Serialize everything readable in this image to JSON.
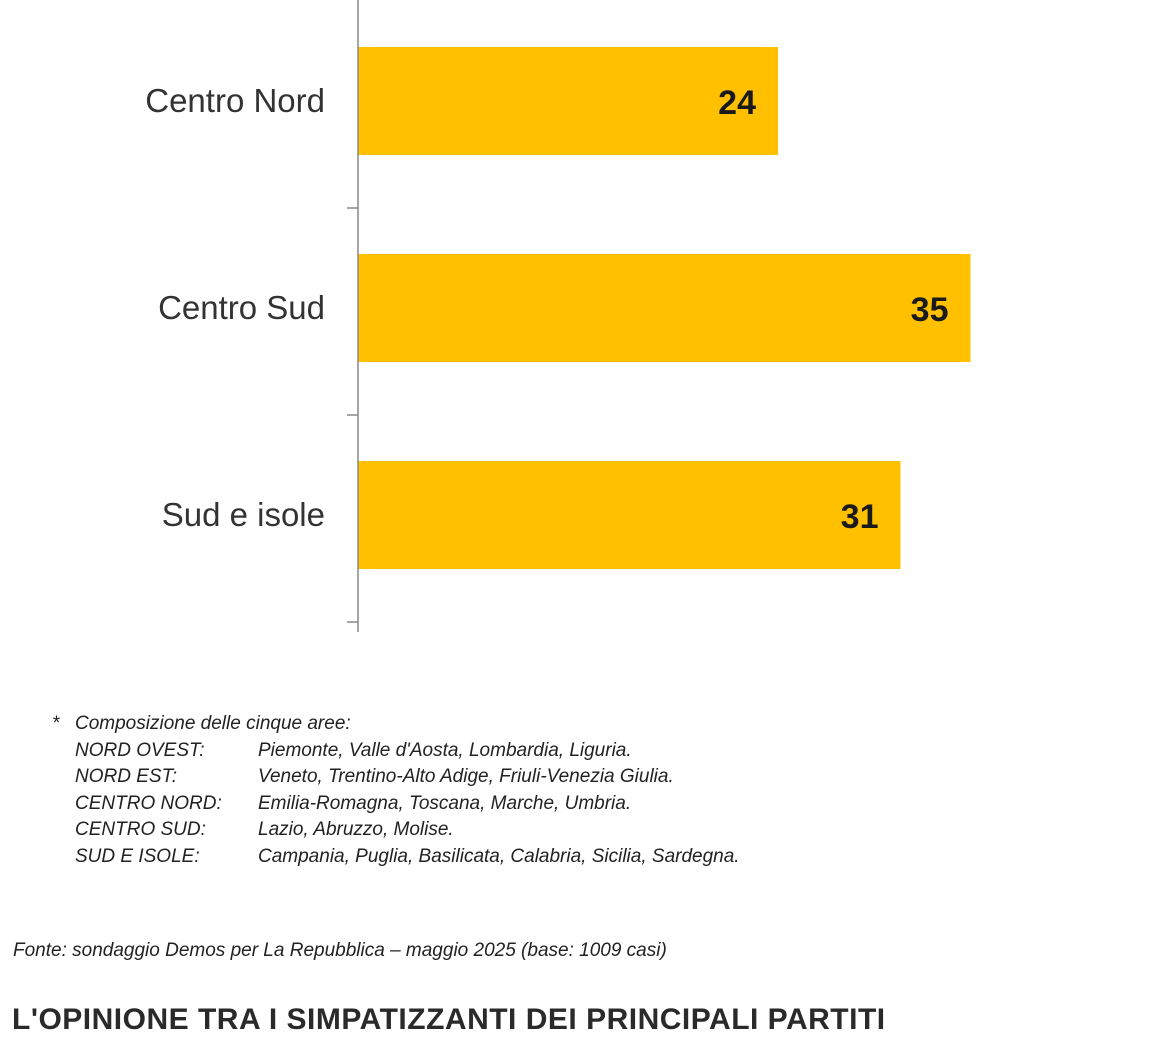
{
  "chart_data": {
    "type": "bar",
    "orientation": "horizontal",
    "categories": [
      "Centro Nord",
      "Centro Sud",
      "Sud e isole"
    ],
    "values": [
      24,
      35,
      31
    ],
    "xlim": [
      0,
      36
    ],
    "bar_color": "#ffc000",
    "grid": false
  },
  "notes": {
    "star": "*",
    "intro": "Composizione delle cinque aree:",
    "areas": [
      {
        "name": "NORD OVEST:",
        "regions": "Piemonte, Valle d'Aosta, Lombardia, Liguria."
      },
      {
        "name": "NORD EST:",
        "regions": "Veneto, Trentino-Alto Adige, Friuli-Venezia Giulia."
      },
      {
        "name": "CENTRO NORD:",
        "regions": "Emilia-Romagna, Toscana, Marche, Umbria."
      },
      {
        "name": "CENTRO SUD:",
        "regions": "Lazio, Abruzzo, Molise."
      },
      {
        "name": "SUD E ISOLE:",
        "regions": "Campania, Puglia, Basilicata, Calabria, Sicilia, Sardegna."
      }
    ]
  },
  "source": "Fonte: sondaggio Demos per La Repubblica – maggio 2025 (base: 1009 casi)",
  "next_heading": "L'OPINIONE TRA I SIMPATIZZANTI DEI PRINCIPALI PARTITI"
}
